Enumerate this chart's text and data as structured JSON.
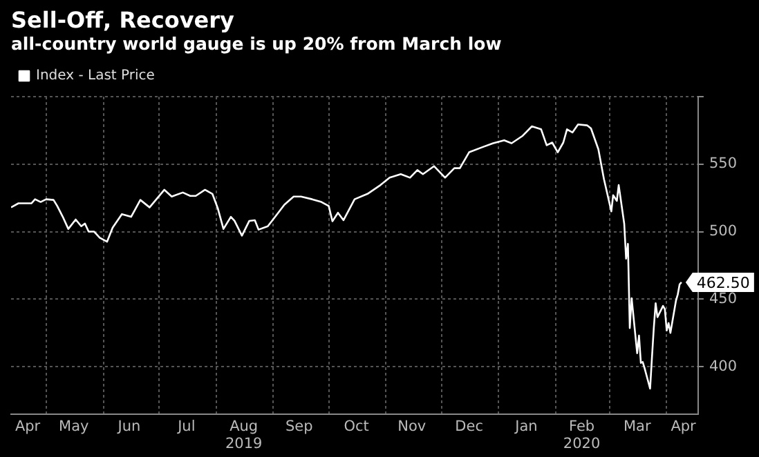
{
  "chart_data": {
    "type": "line",
    "title": "Sell-Off, Recovery",
    "subtitle": "all-country world gauge is up 20% from March low",
    "x": [
      "2019-04-12",
      "2019-04-16",
      "2019-04-23",
      "2019-04-25",
      "2019-04-28",
      "2019-05-01",
      "2019-05-05",
      "2019-05-07",
      "2019-05-10",
      "2019-05-13",
      "2019-05-17",
      "2019-05-20",
      "2019-05-22",
      "2019-05-24",
      "2019-05-27",
      "2019-05-30",
      "2019-06-03",
      "2019-06-06",
      "2019-06-11",
      "2019-06-16",
      "2019-06-21",
      "2019-06-26",
      "2019-07-04",
      "2019-07-08",
      "2019-07-14",
      "2019-07-18",
      "2019-07-21",
      "2019-07-26",
      "2019-07-30",
      "2019-08-02",
      "2019-08-05",
      "2019-08-09",
      "2019-08-11",
      "2019-08-15",
      "2019-08-19",
      "2019-08-22",
      "2019-08-24",
      "2019-08-29",
      "2019-09-02",
      "2019-09-07",
      "2019-09-12",
      "2019-09-16",
      "2019-09-22",
      "2019-09-27",
      "2019-10-01",
      "2019-10-03",
      "2019-10-06",
      "2019-10-09",
      "2019-10-15",
      "2019-10-22",
      "2019-10-29",
      "2019-11-03",
      "2019-11-09",
      "2019-11-14",
      "2019-11-18",
      "2019-11-21",
      "2019-11-27",
      "2019-12-03",
      "2019-12-08",
      "2019-12-11",
      "2019-12-16",
      "2019-12-23",
      "2019-12-29",
      "2020-01-04",
      "2020-01-08",
      "2020-01-14",
      "2020-01-19",
      "2020-01-24",
      "2020-01-27",
      "2020-01-30",
      "2020-02-02",
      "2020-02-05",
      "2020-02-07",
      "2020-02-10",
      "2020-02-13",
      "2020-02-18",
      "2020-02-20",
      "2020-02-24",
      "2020-02-27",
      "2020-03-02",
      "2020-03-03",
      "2020-03-05",
      "2020-03-06",
      "2020-03-09",
      "2020-03-10",
      "2020-03-11",
      "2020-03-12",
      "2020-03-13",
      "2020-03-16",
      "2020-03-17",
      "2020-03-18",
      "2020-03-19",
      "2020-03-20",
      "2020-03-23",
      "2020-03-24",
      "2020-03-25",
      "2020-03-26",
      "2020-03-27",
      "2020-03-30",
      "2020-03-31",
      "2020-04-01",
      "2020-04-02",
      "2020-04-03",
      "2020-04-06",
      "2020-04-07",
      "2020-04-08",
      "2020-04-09"
    ],
    "series": [
      {
        "name": "Index - Last Price",
        "color": "#ffffff",
        "values": [
          518,
          521,
          521,
          524,
          522,
          524,
          523.5,
          519,
          511,
          502,
          509,
          504,
          506,
          500,
          500,
          495.5,
          492.6,
          503,
          513,
          511,
          523.5,
          518,
          531,
          526,
          529,
          526.5,
          526.5,
          531,
          528,
          517,
          502,
          511,
          508,
          497,
          508,
          508.5,
          501.5,
          504,
          511,
          520,
          526,
          526,
          524,
          522,
          519,
          507.7,
          514,
          508.5,
          524,
          528,
          534.5,
          540,
          542.6,
          540,
          545.6,
          542.6,
          548.5,
          540,
          547,
          547,
          558.8,
          562.5,
          565.5,
          567.7,
          565.5,
          571,
          578,
          575.8,
          564,
          566,
          558.8,
          566,
          575.8,
          573.5,
          579.4,
          578.7,
          576.5,
          561,
          539,
          515,
          527,
          522.8,
          534.5,
          505.8,
          480,
          491,
          428.6,
          450.7,
          410,
          423,
          402.8,
          403.5,
          399,
          383.7,
          406.5,
          428.6,
          447,
          436.7,
          445,
          442.6,
          426.8,
          432.3,
          425,
          448.8,
          453.6,
          461,
          462.5
        ],
        "value_labels": [
          null,
          null,
          null,
          null,
          null,
          null,
          null,
          null,
          null,
          null,
          null,
          null,
          null,
          null,
          null,
          null,
          null,
          null,
          null,
          null,
          null,
          null,
          null,
          null,
          null,
          null,
          null,
          null,
          null,
          null,
          null,
          null,
          null,
          null,
          null,
          null,
          null,
          null,
          null,
          null,
          null,
          null,
          null,
          null,
          null,
          null,
          null,
          null,
          null,
          null,
          null,
          null,
          null,
          null,
          null,
          null,
          null,
          null,
          null,
          null,
          null,
          null,
          null,
          null,
          null,
          null,
          null,
          null,
          null,
          null,
          null,
          null,
          null,
          null,
          null,
          null,
          null,
          null,
          null,
          null,
          null,
          null,
          null,
          null,
          null,
          null,
          null,
          null,
          null,
          null,
          null,
          null,
          null,
          null,
          null,
          null,
          null,
          null,
          null,
          null,
          null,
          null,
          null,
          null,
          null,
          null,
          "462.50"
        ]
      }
    ],
    "xlim": [
      "2019-04-12",
      "2020-04-18"
    ],
    "xticks": [
      {
        "value": "2019-04-21",
        "label": "Apr"
      },
      {
        "value": "2019-05-01",
        "label": null
      },
      {
        "value": "2019-05-16",
        "label": "May"
      },
      {
        "value": "2019-06-01",
        "label": null
      },
      {
        "value": "2019-06-15",
        "label": "Jun"
      },
      {
        "value": "2019-07-01",
        "label": null
      },
      {
        "value": "2019-07-16",
        "label": "Jul"
      },
      {
        "value": "2019-08-01",
        "label": null
      },
      {
        "value": "2019-08-16",
        "label": "Aug\n2019"
      },
      {
        "value": "2019-09-01",
        "label": null
      },
      {
        "value": "2019-09-15",
        "label": "Sep"
      },
      {
        "value": "2019-10-01",
        "label": null
      },
      {
        "value": "2019-10-16",
        "label": "Oct"
      },
      {
        "value": "2019-11-01",
        "label": null
      },
      {
        "value": "2019-11-15",
        "label": "Nov"
      },
      {
        "value": "2019-12-01",
        "label": null
      },
      {
        "value": "2019-12-16",
        "label": "Dec"
      },
      {
        "value": "2020-01-01",
        "label": null
      },
      {
        "value": "2020-01-16",
        "label": "Jan"
      },
      {
        "value": "2020-02-01",
        "label": null
      },
      {
        "value": "2020-02-15",
        "label": "Feb\n2020"
      },
      {
        "value": "2020-03-01",
        "label": null
      },
      {
        "value": "2020-03-16",
        "label": "Mar"
      },
      {
        "value": "2020-04-01",
        "label": null
      },
      {
        "value": "2020-04-10",
        "label": "Apr"
      }
    ],
    "ylim": [
      365,
      600
    ],
    "yticks": [
      400,
      450,
      500,
      550,
      {
        "value": 600,
        "label": null
      }
    ],
    "grid": true,
    "legend": "top left",
    "marker": "none",
    "line_style": "solid"
  }
}
